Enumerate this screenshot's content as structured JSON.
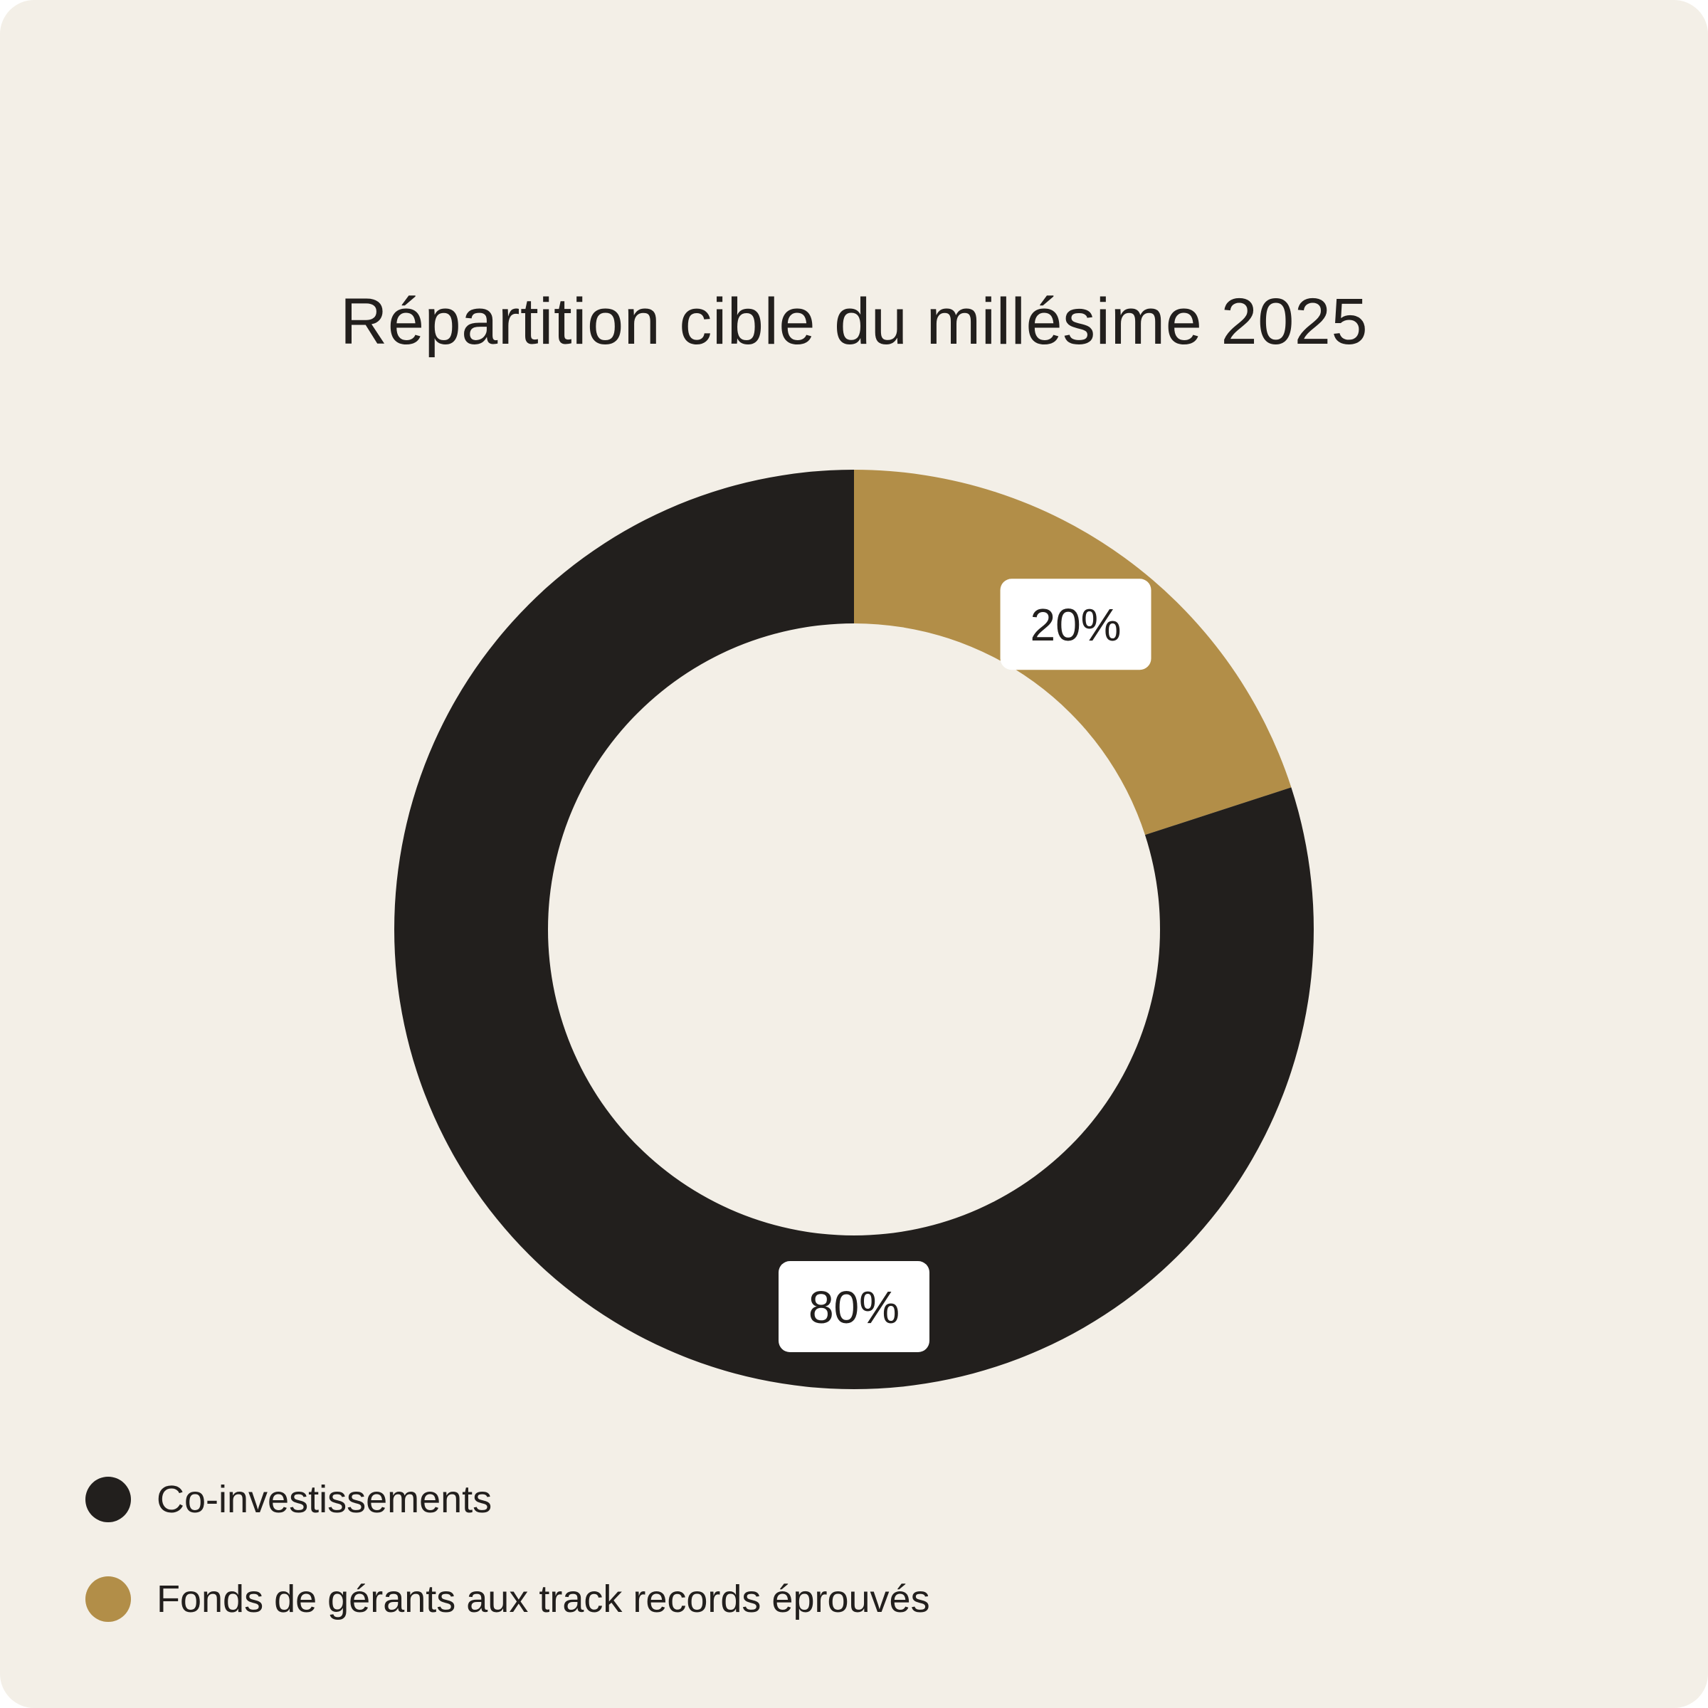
{
  "chart_data": {
    "type": "pie",
    "title": "Répartition cible du millésime 2025",
    "categories": [
      "Co-investissements",
      "Fonds de gérants aux track records éprouvés"
    ],
    "values": [
      80,
      20
    ],
    "value_labels": [
      "80%",
      "20%"
    ],
    "colors": [
      "#221f1d",
      "#b28e48"
    ],
    "donut": true,
    "legend_position": "bottom-left"
  },
  "colors": {
    "background": "#f3efe7",
    "text": "#221f1d",
    "label_box": "#ffffff"
  }
}
